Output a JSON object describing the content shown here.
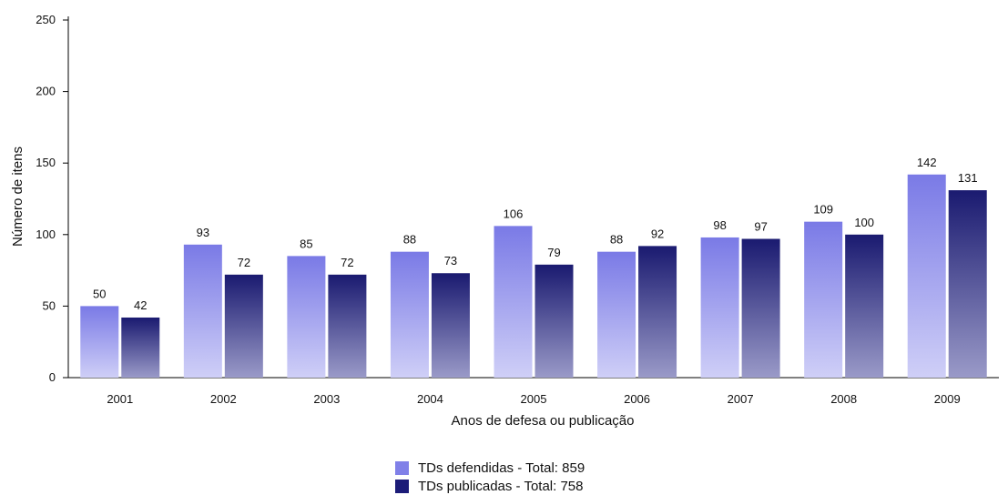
{
  "chart_data": {
    "type": "bar",
    "categories": [
      "2001",
      "2002",
      "2003",
      "2004",
      "2005",
      "2006",
      "2007",
      "2008",
      "2009"
    ],
    "series": [
      {
        "name": "TDs defendidas - Total: 859",
        "values": [
          50,
          93,
          85,
          88,
          106,
          88,
          98,
          109,
          142
        ],
        "color": "#8080e8"
      },
      {
        "name": "TDs publicadas - Total: 758",
        "values": [
          42,
          72,
          72,
          73,
          79,
          92,
          97,
          100,
          131
        ],
        "color": "#1c1c78"
      }
    ],
    "xlabel": "Anos de defesa ou publicação",
    "ylabel": "Número de itens",
    "ylim": [
      0,
      250
    ],
    "yticks": [
      "0",
      "50",
      "100",
      "150",
      "200",
      "250"
    ],
    "grid": false,
    "legend_position": "bottom-center"
  }
}
